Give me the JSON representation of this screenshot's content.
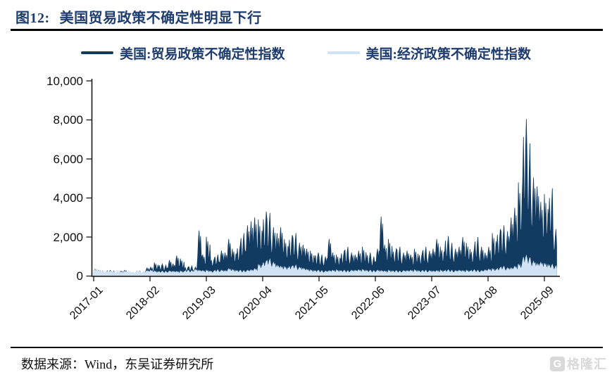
{
  "header": {
    "figure_label": "图12:",
    "title": "美国贸易政策不确定性明显下行"
  },
  "legend": [
    {
      "label": "美国:贸易政策不确定性指数",
      "color": "#123b62"
    },
    {
      "label": "美国:经济政策不确定性指数",
      "color": "#cfe3f5"
    }
  ],
  "footer": {
    "source": "数据来源：Wind，东吴证券研究所"
  },
  "logo": {
    "icon_letter": "G",
    "text": "格隆汇"
  },
  "chart_data": {
    "type": "area",
    "title": "",
    "xlabel": "",
    "ylabel": "",
    "x_start": "2017-01",
    "x_end": "2025-11",
    "frequency": "monthly envelope (peak/base) of daily index",
    "legend_position": "top-center",
    "grid": false,
    "axes": {
      "y": {
        "min": 0,
        "max": 10000,
        "tick_values": [
          0,
          2000,
          4000,
          6000,
          8000,
          10000
        ],
        "tick_labels": [
          "0",
          "2,000",
          "4,000",
          "6,000",
          "8,000",
          "10,000"
        ]
      },
      "x": {
        "tick_labels": [
          "2017-01",
          "2018-02",
          "2019-03",
          "2020-04",
          "2021-05",
          "2022-06",
          "2023-07",
          "2024-08",
          "2025-09"
        ],
        "tick_month_indices": [
          0,
          13,
          26,
          39,
          52,
          65,
          78,
          91,
          104
        ],
        "label_rotation_deg": -45
      }
    },
    "series": [
      {
        "name": "美国:贸易政策不确定性指数",
        "color": "#123b62",
        "peak": [
          350,
          300,
          260,
          300,
          260,
          220,
          260,
          300,
          230,
          210,
          260,
          230,
          420,
          460,
          700,
          620,
          560,
          820,
          640,
          1050,
          900,
          480,
          520,
          470,
          2340,
          1100,
          2010,
          900,
          1100,
          1300,
          1200,
          1900,
          1400,
          1600,
          2200,
          2600,
          2800,
          3000,
          2900,
          3300,
          3240,
          2500,
          2200,
          2500,
          1900,
          2100,
          2200,
          1700,
          1600,
          1400,
          1300,
          1200,
          1100,
          1000,
          1900,
          1200,
          1100,
          1300,
          1500,
          1200,
          1100,
          1300,
          1500,
          1200,
          1000,
          1400,
          3050,
          1600,
          1900,
          1400,
          1500,
          1200,
          1300,
          1100,
          1400,
          1200,
          1500,
          1300,
          1400,
          1900,
          1500,
          2050,
          1700,
          1400,
          1500,
          2000,
          1700,
          1400,
          2000,
          1500,
          1200,
          1500,
          2200,
          2400,
          2600,
          2300,
          3000,
          3500,
          4800,
          8050,
          6800,
          5050,
          4600,
          3800,
          4200,
          4500,
          2400
        ],
        "base": [
          90,
          95,
          85,
          90,
          85,
          80,
          85,
          90,
          80,
          78,
          85,
          80,
          140,
          150,
          200,
          180,
          170,
          200,
          180,
          240,
          220,
          160,
          170,
          160,
          420,
          380,
          450,
          350,
          380,
          400,
          380,
          480,
          420,
          430,
          500,
          560,
          600,
          650,
          620,
          700,
          680,
          560,
          520,
          560,
          480,
          500,
          520,
          440,
          420,
          380,
          360,
          340,
          330,
          320,
          420,
          350,
          330,
          360,
          380,
          350,
          330,
          360,
          390,
          350,
          320,
          380,
          560,
          420,
          470,
          390,
          400,
          350,
          360,
          330,
          380,
          350,
          390,
          360,
          380,
          450,
          400,
          480,
          430,
          380,
          390,
          470,
          430,
          380,
          470,
          400,
          350,
          400,
          520,
          560,
          620,
          560,
          750,
          900,
          1150,
          1900,
          1700,
          1350,
          1250,
          1100,
          1150,
          1200,
          800
        ]
      },
      {
        "name": "美国:经济政策不确定性指数",
        "color": "#cfe3f5",
        "peak": [
          320,
          280,
          250,
          260,
          230,
          240,
          220,
          250,
          230,
          210,
          240,
          230,
          280,
          300,
          260,
          250,
          240,
          260,
          250,
          240,
          260,
          300,
          280,
          340,
          300,
          280,
          300,
          260,
          320,
          300,
          280,
          380,
          330,
          300,
          280,
          300,
          320,
          380,
          600,
          750,
          860,
          700,
          550,
          500,
          480,
          520,
          560,
          450,
          400,
          350,
          320,
          300,
          280,
          260,
          280,
          300,
          320,
          300,
          280,
          300,
          300,
          320,
          340,
          300,
          280,
          300,
          280,
          260,
          300,
          280,
          260,
          280,
          280,
          300,
          320,
          280,
          300,
          280,
          260,
          280,
          300,
          320,
          300,
          280,
          300,
          280,
          300,
          320,
          300,
          280,
          320,
          360,
          380,
          420,
          500,
          420,
          420,
          500,
          620,
          1050,
          950,
          750,
          640,
          700,
          660,
          600,
          520
        ],
        "base": [
          150,
          140,
          125,
          130,
          115,
          120,
          110,
          125,
          115,
          105,
          120,
          115,
          140,
          150,
          130,
          125,
          120,
          130,
          125,
          120,
          130,
          150,
          140,
          170,
          150,
          140,
          150,
          130,
          160,
          150,
          140,
          190,
          165,
          150,
          140,
          150,
          160,
          190,
          300,
          380,
          430,
          350,
          280,
          250,
          240,
          260,
          280,
          230,
          200,
          175,
          160,
          150,
          140,
          130,
          140,
          150,
          160,
          150,
          140,
          150,
          150,
          160,
          170,
          150,
          140,
          150,
          140,
          130,
          150,
          140,
          130,
          140,
          140,
          150,
          160,
          140,
          150,
          140,
          130,
          140,
          150,
          160,
          150,
          140,
          150,
          140,
          150,
          160,
          150,
          140,
          160,
          180,
          190,
          210,
          250,
          210,
          210,
          250,
          310,
          520,
          480,
          380,
          320,
          350,
          330,
          300,
          260
        ]
      }
    ]
  }
}
